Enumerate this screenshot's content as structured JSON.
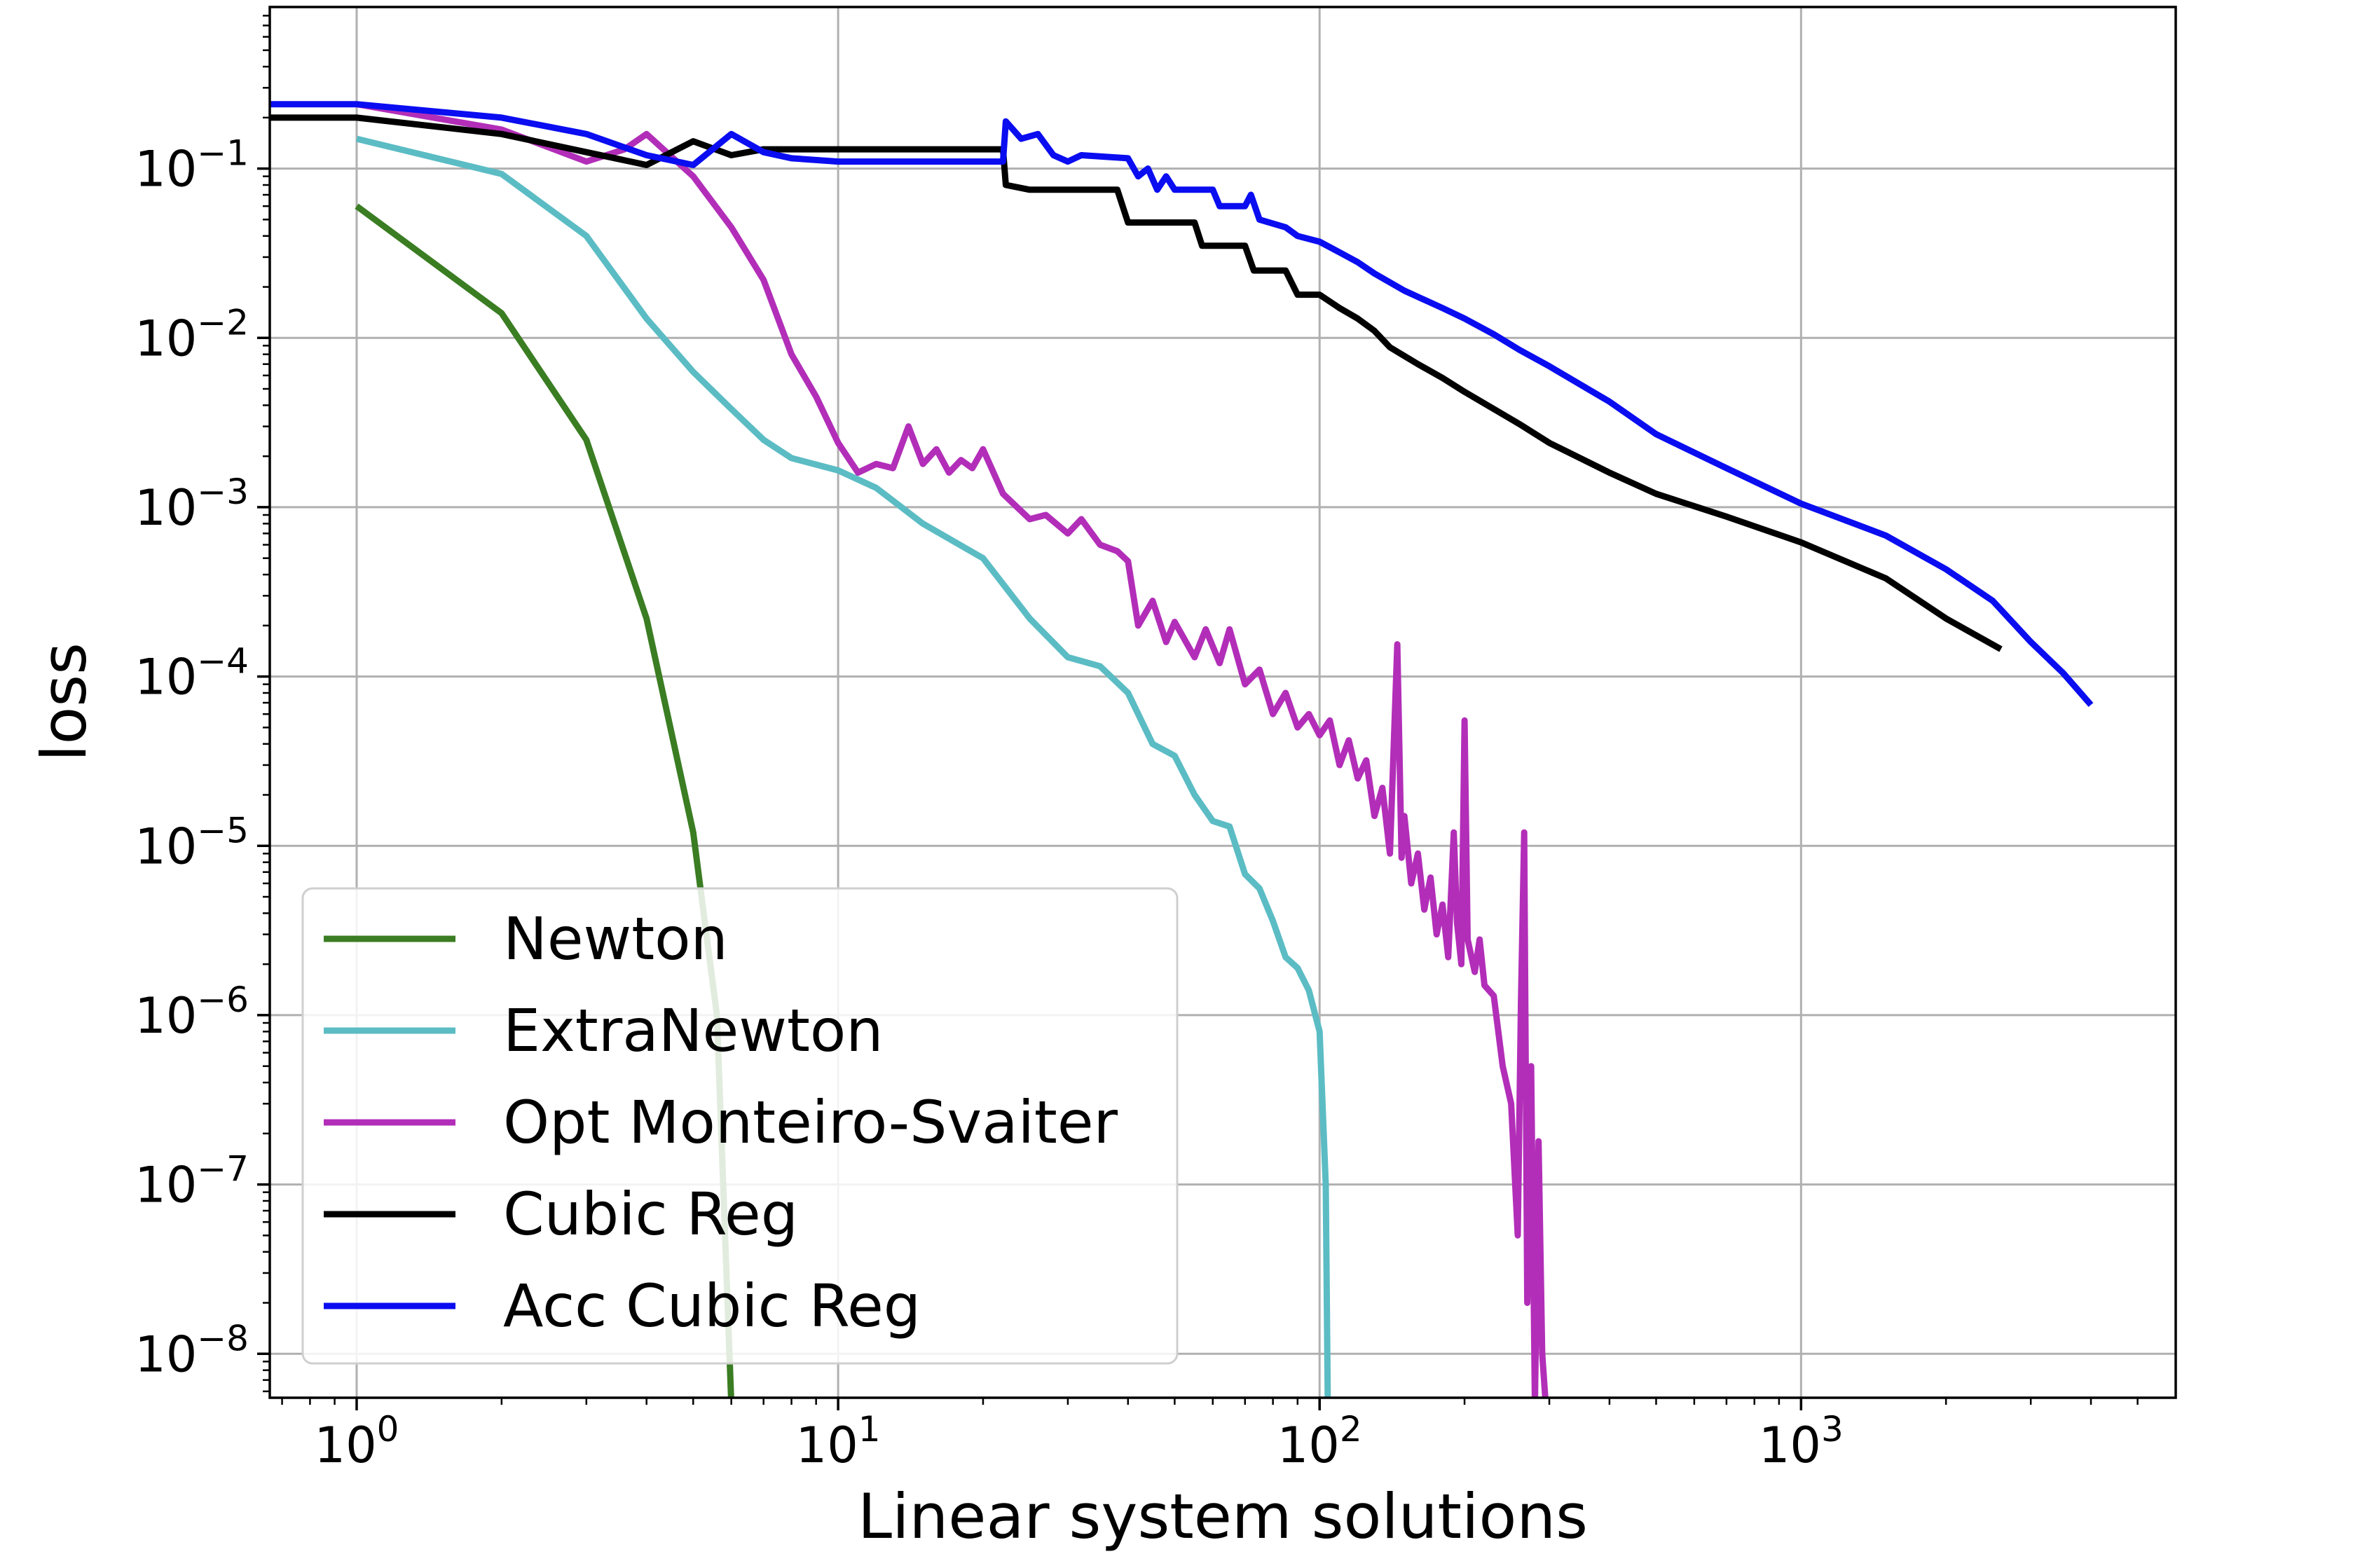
{
  "chart_data": {
    "type": "line",
    "title": "",
    "xlabel": "Linear system solutions",
    "ylabel": "loss",
    "xscale": "log",
    "yscale": "log",
    "xlim": [
      0.66,
      6000
    ],
    "ylim": [
      5.5e-09,
      0.9
    ],
    "grid": true,
    "legend_position": "bottom-left",
    "x_ticks": [
      {
        "base": "10",
        "exp": "0",
        "value": 1
      },
      {
        "base": "10",
        "exp": "1",
        "value": 10
      },
      {
        "base": "10",
        "exp": "2",
        "value": 100
      },
      {
        "base": "10",
        "exp": "3",
        "value": 1000
      }
    ],
    "y_ticks": [
      {
        "base": "10",
        "exp": "−1",
        "value": 0.1
      },
      {
        "base": "10",
        "exp": "−2",
        "value": 0.01
      },
      {
        "base": "10",
        "exp": "−3",
        "value": 0.001
      },
      {
        "base": "10",
        "exp": "−4",
        "value": 0.0001
      },
      {
        "base": "10",
        "exp": "−5",
        "value": 1e-05
      },
      {
        "base": "10",
        "exp": "−6",
        "value": 1e-06
      },
      {
        "base": "10",
        "exp": "−7",
        "value": 1e-07
      },
      {
        "base": "10",
        "exp": "−8",
        "value": 1e-08
      }
    ],
    "series": [
      {
        "name": "Newton",
        "color": "#3a7d22",
        "points": [
          [
            1,
            0.06
          ],
          [
            2,
            0.014
          ],
          [
            3,
            0.0025
          ],
          [
            4,
            0.00022
          ],
          [
            5,
            1.2e-05
          ],
          [
            5.6,
            1e-06
          ],
          [
            6,
            5e-09
          ]
        ]
      },
      {
        "name": "ExtraNewton",
        "color": "#5bbcc4",
        "points": [
          [
            1,
            0.15
          ],
          [
            2,
            0.093
          ],
          [
            3,
            0.04
          ],
          [
            4,
            0.013
          ],
          [
            5,
            0.0063
          ],
          [
            6,
            0.0038
          ],
          [
            7,
            0.0025
          ],
          [
            8,
            0.00195
          ],
          [
            10,
            0.00165
          ],
          [
            12,
            0.0013
          ],
          [
            15,
            0.0008
          ],
          [
            20,
            0.0005
          ],
          [
            25,
            0.00022
          ],
          [
            30,
            0.00013
          ],
          [
            35,
            0.000115
          ],
          [
            40,
            8e-05
          ],
          [
            45,
            4e-05
          ],
          [
            50,
            3.4e-05
          ],
          [
            55,
            2e-05
          ],
          [
            60,
            1.4e-05
          ],
          [
            65,
            1.3e-05
          ],
          [
            70,
            6.8e-06
          ],
          [
            75,
            5.6e-06
          ],
          [
            80,
            3.6e-06
          ],
          [
            85,
            2.2e-06
          ],
          [
            90,
            1.9e-06
          ],
          [
            95,
            1.4e-06
          ],
          [
            100,
            8e-07
          ],
          [
            103,
            1e-07
          ],
          [
            104,
            5e-09
          ]
        ]
      },
      {
        "name": "Opt Monteiro-Svaiter",
        "color": "#b22eb8",
        "points": [
          [
            1,
            0.24
          ],
          [
            2,
            0.17
          ],
          [
            3,
            0.11
          ],
          [
            3.6,
            0.13
          ],
          [
            4,
            0.16
          ],
          [
            5,
            0.09
          ],
          [
            6,
            0.045
          ],
          [
            7,
            0.022
          ],
          [
            8,
            0.008
          ],
          [
            9,
            0.0045
          ],
          [
            10,
            0.0024
          ],
          [
            11,
            0.0016
          ],
          [
            12,
            0.0018
          ],
          [
            13,
            0.0017
          ],
          [
            14,
            0.003
          ],
          [
            15,
            0.0018
          ],
          [
            16,
            0.0022
          ],
          [
            17,
            0.0016
          ],
          [
            18,
            0.0019
          ],
          [
            19,
            0.0017
          ],
          [
            20,
            0.0022
          ],
          [
            22,
            0.0012
          ],
          [
            25,
            0.00085
          ],
          [
            27,
            0.0009
          ],
          [
            30,
            0.0007
          ],
          [
            32,
            0.00085
          ],
          [
            35,
            0.0006
          ],
          [
            38,
            0.00055
          ],
          [
            40,
            0.00048
          ],
          [
            42,
            0.0002
          ],
          [
            45,
            0.00028
          ],
          [
            48,
            0.00016
          ],
          [
            50,
            0.00021
          ],
          [
            55,
            0.00013
          ],
          [
            58,
            0.00019
          ],
          [
            62,
            0.00012
          ],
          [
            65,
            0.00019
          ],
          [
            70,
            9e-05
          ],
          [
            75,
            0.00011
          ],
          [
            80,
            6e-05
          ],
          [
            85,
            8e-05
          ],
          [
            90,
            5e-05
          ],
          [
            95,
            6e-05
          ],
          [
            100,
            4.5e-05
          ],
          [
            105,
            5.5e-05
          ],
          [
            110,
            3e-05
          ],
          [
            115,
            4.2e-05
          ],
          [
            120,
            2.5e-05
          ],
          [
            125,
            3.2e-05
          ],
          [
            130,
            1.5e-05
          ],
          [
            135,
            2.2e-05
          ],
          [
            140,
            9e-06
          ],
          [
            145,
            0.000155
          ],
          [
            148,
            8.5e-06
          ],
          [
            150,
            1.5e-05
          ],
          [
            155,
            6e-06
          ],
          [
            160,
            9e-06
          ],
          [
            165,
            4.2e-06
          ],
          [
            170,
            6.5e-06
          ],
          [
            175,
            3e-06
          ],
          [
            180,
            4.5e-06
          ],
          [
            185,
            2.2e-06
          ],
          [
            190,
            1.2e-05
          ],
          [
            193,
            3.5e-06
          ],
          [
            197,
            2e-06
          ],
          [
            200,
            5.5e-05
          ],
          [
            203,
            2.8e-06
          ],
          [
            210,
            1.8e-06
          ],
          [
            215,
            2.8e-06
          ],
          [
            220,
            1.5e-06
          ],
          [
            230,
            1.3e-06
          ],
          [
            240,
            5e-07
          ],
          [
            250,
            3e-07
          ],
          [
            258,
            5e-08
          ],
          [
            262,
            1.2e-06
          ],
          [
            266,
            1.2e-05
          ],
          [
            270,
            2e-08
          ],
          [
            275,
            5e-07
          ],
          [
            280,
            5e-09
          ],
          [
            285,
            1.8e-07
          ],
          [
            290,
            1e-08
          ],
          [
            295,
            5e-09
          ]
        ]
      },
      {
        "name": "Cubic Reg",
        "color": "#000000",
        "points": [
          [
            0.66,
            0.2
          ],
          [
            1,
            0.2
          ],
          [
            2,
            0.16
          ],
          [
            3,
            0.125
          ],
          [
            4,
            0.105
          ],
          [
            5,
            0.145
          ],
          [
            6,
            0.12
          ],
          [
            7,
            0.13
          ],
          [
            8,
            0.13
          ],
          [
            10,
            0.13
          ],
          [
            15,
            0.13
          ],
          [
            22,
            0.13
          ],
          [
            22.3,
            0.08
          ],
          [
            25,
            0.075
          ],
          [
            30,
            0.075
          ],
          [
            38,
            0.075
          ],
          [
            40,
            0.048
          ],
          [
            50,
            0.048
          ],
          [
            55,
            0.048
          ],
          [
            57,
            0.035
          ],
          [
            70,
            0.035
          ],
          [
            73,
            0.025
          ],
          [
            85,
            0.025
          ],
          [
            90,
            0.018
          ],
          [
            100,
            0.018
          ],
          [
            110,
            0.015
          ],
          [
            120,
            0.013
          ],
          [
            130,
            0.011
          ],
          [
            140,
            0.0088
          ],
          [
            160,
            0.007
          ],
          [
            180,
            0.0058
          ],
          [
            200,
            0.0048
          ],
          [
            230,
            0.0038
          ],
          [
            260,
            0.0031
          ],
          [
            300,
            0.0024
          ],
          [
            400,
            0.0016
          ],
          [
            500,
            0.0012
          ],
          [
            700,
            0.00088
          ],
          [
            1000,
            0.00062
          ],
          [
            1500,
            0.00038
          ],
          [
            2000,
            0.00022
          ],
          [
            2600,
            0.000145
          ]
        ]
      },
      {
        "name": "Acc Cubic Reg",
        "color": "#0a0df0",
        "points": [
          [
            0.66,
            0.24
          ],
          [
            1,
            0.24
          ],
          [
            2,
            0.2
          ],
          [
            3,
            0.16
          ],
          [
            4,
            0.12
          ],
          [
            5,
            0.105
          ],
          [
            6,
            0.16
          ],
          [
            7,
            0.125
          ],
          [
            8,
            0.115
          ],
          [
            10,
            0.11
          ],
          [
            15,
            0.11
          ],
          [
            22,
            0.11
          ],
          [
            22.3,
            0.19
          ],
          [
            24,
            0.15
          ],
          [
            26,
            0.16
          ],
          [
            28,
            0.12
          ],
          [
            30,
            0.11
          ],
          [
            32,
            0.12
          ],
          [
            40,
            0.115
          ],
          [
            42,
            0.09
          ],
          [
            44,
            0.1
          ],
          [
            46,
            0.075
          ],
          [
            48,
            0.09
          ],
          [
            50,
            0.075
          ],
          [
            55,
            0.075
          ],
          [
            60,
            0.075
          ],
          [
            62,
            0.06
          ],
          [
            70,
            0.06
          ],
          [
            72,
            0.07
          ],
          [
            75,
            0.05
          ],
          [
            85,
            0.045
          ],
          [
            90,
            0.04
          ],
          [
            100,
            0.037
          ],
          [
            110,
            0.032
          ],
          [
            120,
            0.028
          ],
          [
            130,
            0.024
          ],
          [
            150,
            0.019
          ],
          [
            180,
            0.015
          ],
          [
            200,
            0.013
          ],
          [
            230,
            0.0105
          ],
          [
            260,
            0.0085
          ],
          [
            300,
            0.0068
          ],
          [
            400,
            0.0042
          ],
          [
            500,
            0.0027
          ],
          [
            700,
            0.0017
          ],
          [
            1000,
            0.00105
          ],
          [
            1500,
            0.00068
          ],
          [
            2000,
            0.00043
          ],
          [
            2500,
            0.00028
          ],
          [
            3000,
            0.00016
          ],
          [
            3500,
            0.000105
          ],
          [
            4000,
            6.8e-05
          ]
        ]
      }
    ]
  }
}
